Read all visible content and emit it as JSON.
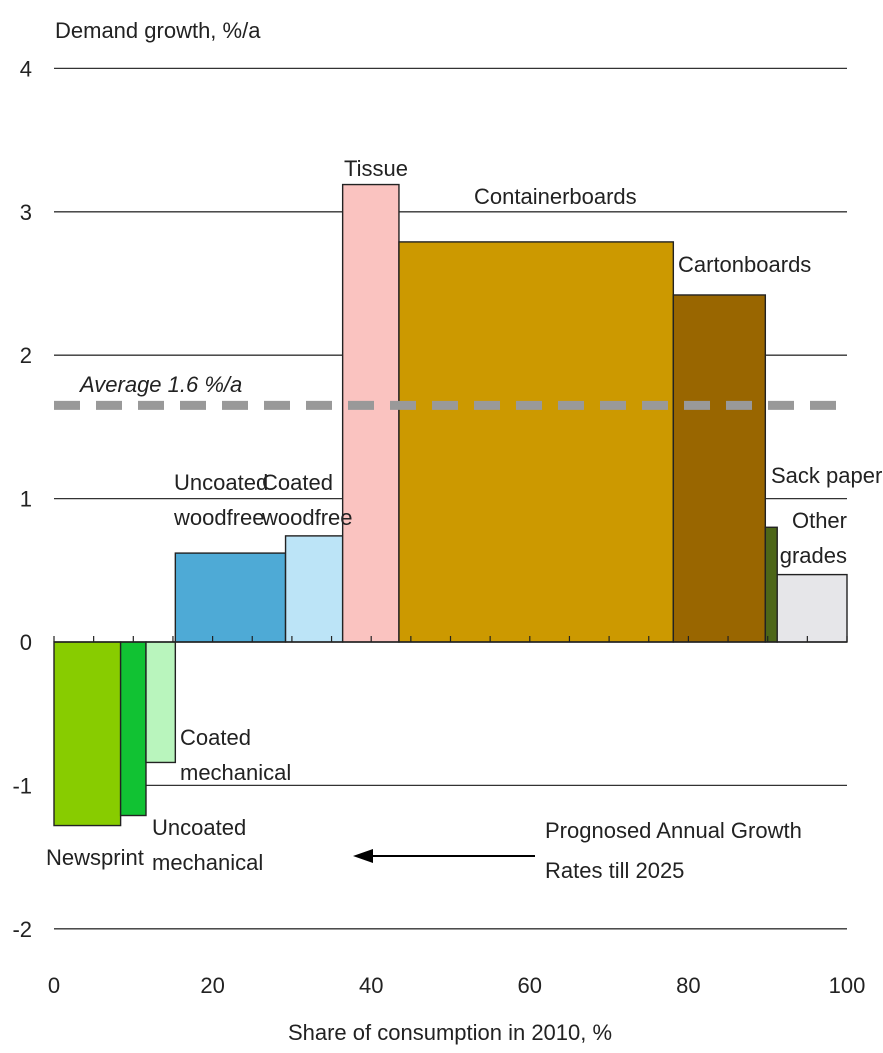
{
  "chart_data": {
    "type": "bar",
    "subtype": "variable-width",
    "ylabel": "Demand growth, %/a",
    "xlabel": "Share of consumption in 2010, %",
    "xlim": [
      0,
      100
    ],
    "ylim": [
      -2,
      4
    ],
    "xticks": [
      0,
      20,
      40,
      60,
      80,
      100
    ],
    "yticks": [
      -2,
      -1,
      0,
      1,
      2,
      3,
      4
    ],
    "grid": "horizontal",
    "bars": [
      {
        "label": "Newsprint",
        "x0": 0,
        "x1": 8.4,
        "value": -1.28,
        "color": "#88cc00"
      },
      {
        "label": "Uncoated mechanical",
        "x0": 8.4,
        "x1": 11.6,
        "value": -1.21,
        "color": "#11c233"
      },
      {
        "label": "Coated mechanical",
        "x0": 11.6,
        "x1": 15.3,
        "value": -0.84,
        "color": "#b9f5bd"
      },
      {
        "label": "Uncoated woodfree",
        "x0": 15.3,
        "x1": 29.2,
        "value": 0.62,
        "color": "#4eaad6"
      },
      {
        "label": "Coated woodfree",
        "x0": 29.2,
        "x1": 36.4,
        "value": 0.74,
        "color": "#bce4f7"
      },
      {
        "label": "Tissue",
        "x0": 36.4,
        "x1": 43.5,
        "value": 3.19,
        "color": "#fac3c0"
      },
      {
        "label": "Containerboards",
        "x0": 43.5,
        "x1": 78.1,
        "value": 2.79,
        "color": "#cc9900"
      },
      {
        "label": "Cartonboards",
        "x0": 78.1,
        "x1": 89.7,
        "value": 2.42,
        "color": "#996600"
      },
      {
        "label": "Sack paper",
        "x0": 89.7,
        "x1": 91.2,
        "value": 0.8,
        "color": "#4d6618"
      },
      {
        "label": "Other grades",
        "x0": 91.2,
        "x1": 100,
        "value": 0.47,
        "color": "#e6e6e9"
      }
    ],
    "average": {
      "value": 1.65,
      "label": "Average 1.6 %/a",
      "color": "#999999"
    },
    "annotation": {
      "line1": "Prognosed Annual Growth",
      "line2": "Rates till 2025"
    }
  }
}
